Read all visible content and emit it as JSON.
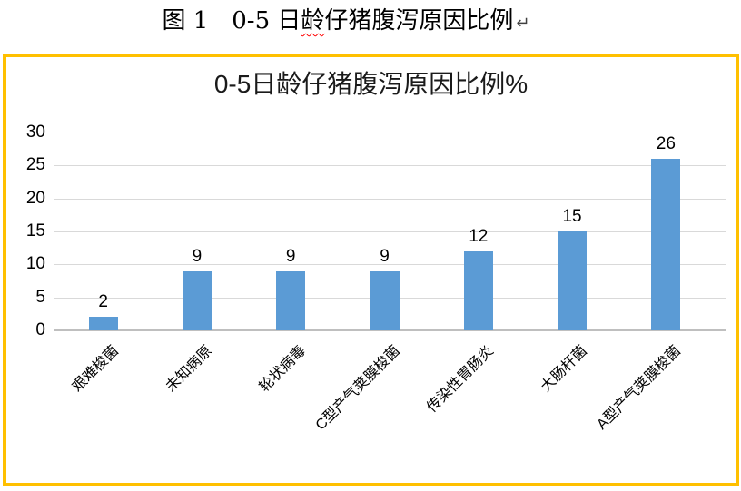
{
  "doc_title": {
    "prefix": "图 1　0-5 日",
    "underlined_word": "龄",
    "suffix": "仔猪腹泻原因比例",
    "return_mark": "↵"
  },
  "chart": {
    "border_color": "#FFC000",
    "background_color": "#FFFFFF",
    "gridline_color": "#D9D9D9",
    "axis_color": "#BFBFBF",
    "text_color": "#000000"
  },
  "chart_data": {
    "type": "bar",
    "title": "0-5日龄仔猪腹泻原因比例%",
    "categories": [
      "艰难梭菌",
      "未知病原",
      "轮状病毒",
      "C型产气荚膜梭菌",
      "传染性胃肠炎",
      "大肠杆菌",
      "A型产气荚膜梭菌"
    ],
    "values": [
      2,
      9,
      9,
      9,
      12,
      15,
      26
    ],
    "bar_color": "#5B9BD5",
    "xlabel": "",
    "ylabel": "",
    "ylim": [
      0,
      30
    ],
    "yticks": [
      0,
      5,
      10,
      15,
      20,
      25,
      30
    ],
    "grid": true,
    "legend": false,
    "category_label_rotation_deg": -45
  }
}
